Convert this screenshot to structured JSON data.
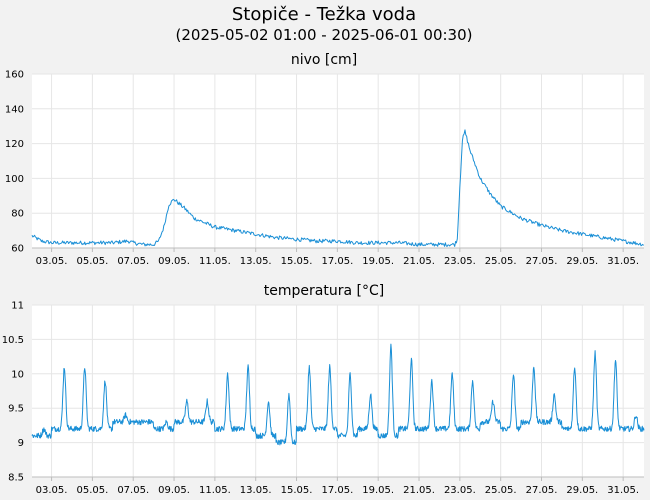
{
  "header": {
    "title": "Stopiče - Težka voda",
    "subtitle": "(2025-05-02 01:00 - 2025-06-01 00:30)"
  },
  "chart_data": [
    {
      "type": "line",
      "title": "nivo [cm]",
      "xlabel": "",
      "ylabel": "",
      "ylim": [
        60,
        160
      ],
      "yticks": [
        60,
        80,
        100,
        120,
        140,
        160
      ],
      "xlim": [
        "2025-05-02 01:00",
        "2025-06-01 00:30"
      ],
      "xticks": [
        "03.05.",
        "05.05.",
        "07.05.",
        "09.05.",
        "11.05.",
        "13.05.",
        "15.05.",
        "17.05.",
        "19.05.",
        "21.05.",
        "23.05.",
        "25.05.",
        "27.05.",
        "29.05.",
        "31.05."
      ],
      "grid": true,
      "color": "#1a8fd6",
      "series": [
        {
          "x": [
            "2025-05-02 01:00",
            "2025-05-02 12:00",
            "2025-05-03 00:00",
            "2025-05-04 00:00",
            "2025-05-05 00:00",
            "2025-05-06 00:00",
            "2025-05-06 18:00",
            "2025-05-07 00:00",
            "2025-05-07 12:00",
            "2025-05-08 00:00",
            "2025-05-08 06:00",
            "2025-05-08 12:00",
            "2025-05-08 18:00",
            "2025-05-09 00:00",
            "2025-05-09 12:00",
            "2025-05-10 00:00",
            "2025-05-11 00:00",
            "2025-05-12 00:00",
            "2025-05-13 00:00",
            "2025-05-14 00:00",
            "2025-05-15 00:00",
            "2025-05-16 00:00",
            "2025-05-17 00:00",
            "2025-05-18 00:00",
            "2025-05-19 00:00",
            "2025-05-20 00:00",
            "2025-05-21 00:00",
            "2025-05-22 00:00",
            "2025-05-22 12:00",
            "2025-05-22 18:00",
            "2025-05-22 21:00",
            "2025-05-23 00:00",
            "2025-05-23 03:00",
            "2025-05-23 06:00",
            "2025-05-23 12:00",
            "2025-05-24 00:00",
            "2025-05-24 12:00",
            "2025-05-25 00:00",
            "2025-05-26 00:00",
            "2025-05-27 00:00",
            "2025-05-28 00:00",
            "2025-05-29 00:00",
            "2025-05-30 00:00",
            "2025-05-31 00:00",
            "2025-06-01 00:30"
          ],
          "values": [
            67,
            64,
            63,
            63,
            63,
            63,
            64,
            63,
            62,
            62,
            64,
            72,
            85,
            88,
            83,
            77,
            72,
            70,
            68,
            66,
            65,
            64,
            64,
            63,
            63,
            63,
            62,
            62,
            62,
            62,
            65,
            95,
            122,
            127,
            116,
            100,
            91,
            84,
            77,
            73,
            70,
            68,
            66,
            64,
            62
          ]
        }
      ]
    },
    {
      "type": "line",
      "title": "temperatura [°C]",
      "xlabel": "",
      "ylabel": "",
      "ylim": [
        8.5,
        11
      ],
      "yticks": [
        8.5,
        9,
        9.5,
        10,
        10.5,
        11
      ],
      "xlim": [
        "2025-05-02 01:00",
        "2025-06-01 00:30"
      ],
      "xticks": [
        "03.05.",
        "05.05.",
        "07.05.",
        "09.05.",
        "11.05.",
        "13.05.",
        "15.05.",
        "17.05.",
        "19.05.",
        "21.05.",
        "23.05.",
        "25.05.",
        "27.05.",
        "29.05.",
        "31.05."
      ],
      "grid": true,
      "color": "#1a8fd6",
      "series": [
        {
          "x": [
            "2025-05-02",
            "2025-05-03",
            "2025-05-04",
            "2025-05-05",
            "2025-05-06",
            "2025-05-07",
            "2025-05-08",
            "2025-05-09",
            "2025-05-10",
            "2025-05-11",
            "2025-05-12",
            "2025-05-13",
            "2025-05-14",
            "2025-05-15",
            "2025-05-16",
            "2025-05-17",
            "2025-05-18",
            "2025-05-19",
            "2025-05-20",
            "2025-05-21",
            "2025-05-22",
            "2025-05-23",
            "2025-05-24",
            "2025-05-25",
            "2025-05-26",
            "2025-05-27",
            "2025-05-28",
            "2025-05-29",
            "2025-05-30",
            "2025-05-31"
          ],
          "daily_min": [
            9.0,
            9.1,
            9.1,
            9.1,
            9.2,
            9.2,
            9.1,
            9.2,
            9.2,
            9.1,
            9.1,
            9.0,
            8.9,
            9.1,
            9.1,
            9.0,
            9.1,
            9.0,
            9.1,
            9.1,
            9.1,
            9.1,
            9.2,
            9.1,
            9.2,
            9.2,
            9.1,
            9.1,
            9.1,
            9.1
          ],
          "daily_max": [
            9.2,
            10.1,
            10.1,
            9.9,
            9.4,
            9.3,
            9.3,
            9.6,
            9.6,
            10.0,
            10.1,
            9.6,
            9.7,
            10.1,
            10.1,
            10.0,
            9.7,
            10.4,
            10.2,
            9.9,
            10.0,
            9.9,
            9.6,
            10.0,
            10.1,
            9.7,
            10.1,
            10.3,
            10.2,
            9.4
          ]
        }
      ]
    }
  ]
}
